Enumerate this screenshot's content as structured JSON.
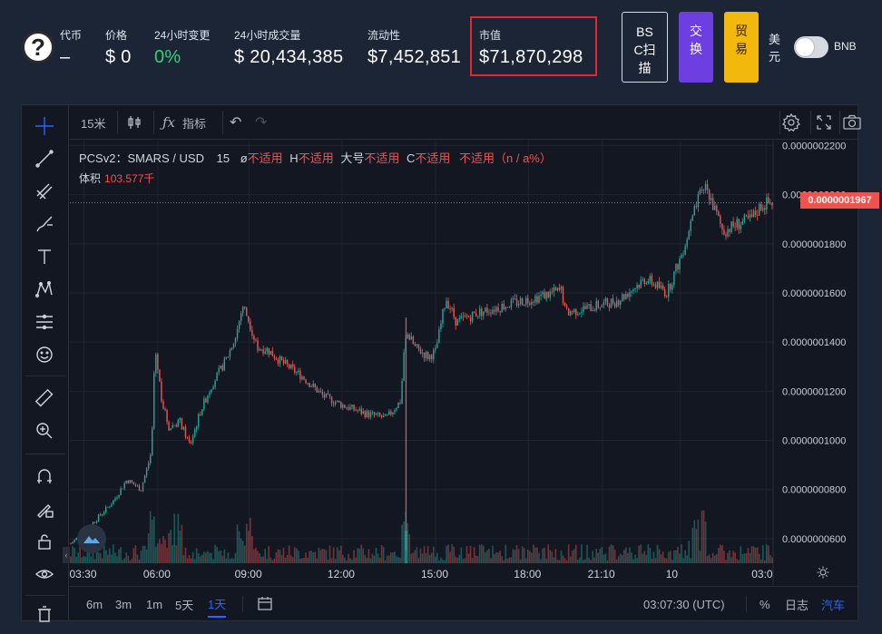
{
  "header": {
    "token_icon": "question-mark-icon",
    "token": {
      "label": "代币",
      "value": "–"
    },
    "price": {
      "label": "价格",
      "value": "$ 0"
    },
    "change24h": {
      "label": "24小时变更",
      "value": "0%"
    },
    "volume24h": {
      "label": "24小时成交量",
      "value": "$ 20,434,385"
    },
    "liquidity": {
      "label": "流动性",
      "value": "$7,452,851"
    },
    "market_cap": {
      "label": "市值",
      "value": "$71,870,298"
    },
    "buttons": {
      "bsc_scan": "BSC扫描",
      "swap": "交换",
      "trade": "贸易"
    },
    "currency_usd": "美元",
    "currency_bnb": "BNB"
  },
  "colors": {
    "up": "#26a69a",
    "down": "#ef5350",
    "accent": "#2962ff",
    "swap": "#6d3fe0",
    "trade": "#f2b80b",
    "highlight_box": "#e3262f"
  },
  "toolbar": {
    "interval": "15米",
    "indicators": "指标"
  },
  "legend": {
    "symbol": "PCSv2：SMARS / USD",
    "interval": "15",
    "o_key": "ø",
    "o_val": "不适用",
    "h_key": "H",
    "h_val": "不适用",
    "l_key": "大号",
    "l_val": "不适用",
    "c_key": "C",
    "c_val": "不适用",
    "chg_val": "不适用（n / a%）",
    "volume_label": "体积",
    "volume_value": "103.577千"
  },
  "price_axis": {
    "labels": [
      "0.0000002200",
      "0.0000002000",
      "0.0000001800",
      "0.0000001600",
      "0.0000001400",
      "0.0000001200",
      "0.0000001000",
      "0.0000000800",
      "0.0000000600"
    ],
    "current_price": "0.0000001967"
  },
  "time_axis": {
    "labels": [
      "03:30",
      "06:00",
      "09:00",
      "12:00",
      "15:00",
      "18:00",
      "21:10",
      "10",
      "03:0"
    ]
  },
  "bottom_bar": {
    "ranges": [
      "6m",
      "3m",
      "1m",
      "5天",
      "1天"
    ],
    "active_range": "1天",
    "clock": "03:07:30 (UTC)",
    "percent": "%",
    "log": "日志",
    "auto": "汽车"
  },
  "chart_data": {
    "type": "candlestick",
    "series_name": "PCSv2：SMARS / USD",
    "x": [
      "03:30",
      "06:00",
      "09:00",
      "12:00",
      "15:00",
      "18:00",
      "21:10",
      "10",
      "03:0"
    ],
    "close": [
      6e-08,
      1e-07,
      1.4e-07,
      1.2e-07,
      1.47e-07,
      1.57e-07,
      1.6e-07,
      1.67e-07,
      1.967e-07
    ],
    "ylim": [
      5e-08,
      2.22e-07
    ],
    "current_price": 1.967e-07,
    "grid": true
  }
}
